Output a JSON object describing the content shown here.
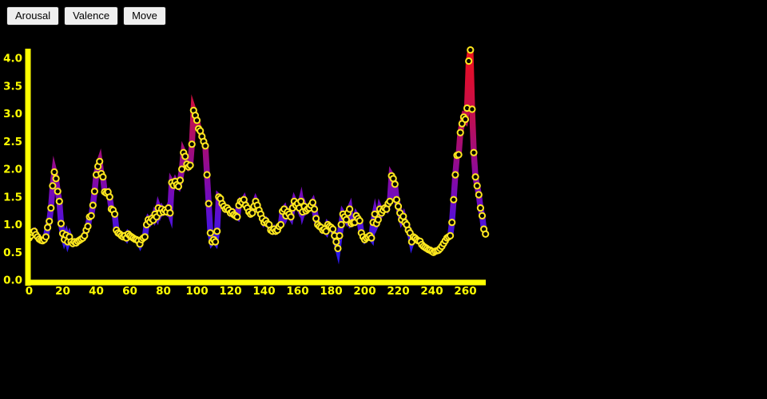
{
  "app": {
    "background": "#000000"
  },
  "toolbar": {
    "buttons": [
      {
        "label": "Arousal"
      },
      {
        "label": "Valence"
      },
      {
        "label": "Move"
      }
    ]
  },
  "chart_data": {
    "type": "line",
    "title": "",
    "xlabel": "",
    "ylabel": "",
    "xlim": [
      0,
      272
    ],
    "ylim": [
      0,
      4.2
    ],
    "grid": false,
    "legend": "none",
    "axis_color": "#ffff00",
    "tick_label_color": "#ffff00",
    "marker": {
      "shape": "circle",
      "fill": "#000000",
      "stroke": "#ffe81e"
    },
    "x_ticks": [
      0,
      20,
      40,
      60,
      80,
      100,
      120,
      140,
      160,
      180,
      200,
      220,
      240,
      260
    ],
    "y_ticks": [
      0.0,
      0.5,
      1.0,
      1.5,
      2.0,
      2.5,
      3.0,
      3.5,
      4.0
    ],
    "y_tick_labels": [
      "0.0",
      "0.5",
      "1.0",
      "1.5",
      "2.0",
      "2.5",
      "3.0",
      "3.5",
      "4.0"
    ],
    "line_gradient": [
      {
        "value": 4.3,
        "color": "#f11515"
      },
      {
        "value": 3.6,
        "color": "#d90d33"
      },
      {
        "value": 3.0,
        "color": "#c20f4e"
      },
      {
        "value": 2.6,
        "color": "#ae0e68"
      },
      {
        "value": 2.2,
        "color": "#9a0c86"
      },
      {
        "value": 1.8,
        "color": "#840aa6"
      },
      {
        "value": 1.4,
        "color": "#6c0cc4"
      },
      {
        "value": 1.0,
        "color": "#4f12d8"
      },
      {
        "value": 0.6,
        "color": "#3218e6"
      },
      {
        "value": 0.4,
        "color": "#2a19ea"
      }
    ],
    "series": [
      {
        "name": "Arousal",
        "x_start": 0,
        "x_step": 1,
        "values": [
          0.76,
          0.8,
          0.86,
          0.88,
          0.82,
          0.78,
          0.74,
          0.72,
          0.71,
          0.73,
          0.78,
          0.95,
          1.06,
          1.3,
          1.7,
          1.95,
          1.83,
          1.6,
          1.42,
          1.02,
          0.84,
          0.73,
          0.81,
          0.69,
          0.78,
          0.69,
          0.66,
          0.69,
          0.67,
          0.7,
          0.72,
          0.74,
          0.76,
          0.8,
          0.9,
          0.97,
          1.14,
          1.16,
          1.35,
          1.6,
          1.9,
          2.05,
          2.14,
          1.92,
          1.86,
          1.59,
          1.57,
          1.59,
          1.5,
          1.28,
          1.26,
          1.19,
          0.9,
          0.85,
          0.83,
          0.8,
          0.78,
          0.8,
          0.76,
          0.83,
          0.8,
          0.78,
          0.76,
          0.74,
          0.73,
          0.71,
          0.65,
          0.73,
          0.76,
          0.78,
          1.0,
          1.09,
          1.05,
          1.11,
          1.08,
          1.19,
          1.14,
          1.3,
          1.21,
          1.28,
          1.23,
          1.26,
          1.23,
          1.3,
          1.21,
          1.76,
          1.71,
          1.78,
          1.72,
          1.69,
          1.8,
          2.0,
          2.3,
          2.23,
          2.09,
          2.04,
          2.07,
          2.45,
          3.06,
          2.97,
          2.88,
          2.73,
          2.69,
          2.59,
          2.5,
          2.42,
          1.9,
          1.38,
          0.85,
          0.69,
          0.73,
          0.69,
          0.88,
          1.5,
          1.47,
          1.38,
          1.33,
          1.28,
          1.3,
          1.26,
          1.21,
          1.23,
          1.18,
          1.16,
          1.14,
          1.35,
          1.42,
          1.4,
          1.45,
          1.35,
          1.3,
          1.23,
          1.19,
          1.21,
          1.33,
          1.42,
          1.35,
          1.26,
          1.19,
          1.11,
          1.04,
          1.07,
          1.02,
          1.0,
          0.9,
          0.88,
          0.92,
          0.88,
          0.9,
          0.97,
          1.0,
          1.24,
          1.28,
          1.16,
          1.23,
          1.19,
          1.14,
          1.3,
          1.42,
          1.35,
          1.38,
          1.3,
          1.42,
          1.23,
          1.33,
          1.25,
          1.28,
          1.3,
          1.35,
          1.4,
          1.28,
          1.11,
          1.0,
          0.97,
          0.95,
          0.9,
          0.92,
          0.88,
          1.0,
          0.97,
          0.95,
          0.92,
          0.8,
          0.69,
          0.57,
          0.8,
          1.0,
          1.19,
          1.14,
          1.09,
          1.21,
          1.28,
          1.02,
          1.04,
          1.04,
          1.16,
          1.11,
          1.07,
          0.85,
          0.78,
          0.73,
          0.76,
          0.78,
          0.8,
          0.76,
          1.04,
          1.19,
          1.02,
          1.09,
          1.28,
          1.21,
          1.26,
          1.3,
          1.28,
          1.38,
          1.42,
          1.88,
          1.83,
          1.73,
          1.45,
          1.33,
          1.21,
          1.09,
          1.15,
          1.04,
          1.0,
          0.9,
          0.85,
          0.69,
          0.78,
          0.76,
          0.73,
          0.71,
          0.7,
          0.64,
          0.61,
          0.59,
          0.57,
          0.55,
          0.54,
          0.52,
          0.5,
          0.52,
          0.53,
          0.54,
          0.57,
          0.61,
          0.66,
          0.71,
          0.76,
          0.78,
          0.8,
          1.04,
          1.45,
          1.9,
          2.25,
          2.26,
          2.66,
          2.82,
          2.94,
          2.9,
          3.1,
          3.95,
          4.15,
          3.08,
          2.3,
          1.86,
          1.7,
          1.54,
          1.3,
          1.16,
          0.92,
          0.83
        ]
      }
    ]
  }
}
